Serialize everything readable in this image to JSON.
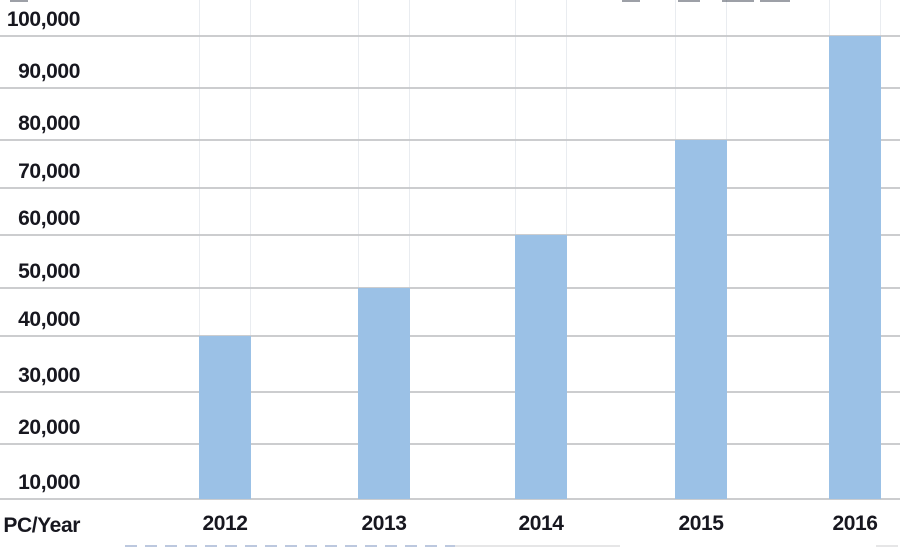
{
  "chart_data": {
    "type": "bar",
    "categories": [
      "2012",
      "2013",
      "2014",
      "2015",
      "2016"
    ],
    "values": [
      40000,
      50000,
      60000,
      80000,
      100000
    ],
    "origin_label": "PC/Year",
    "xlabel": "",
    "ylabel": "",
    "ylim": [
      10000,
      100000
    ],
    "ytick_interval": 10000,
    "ytick_labels": [
      "10,000",
      "20,000",
      "30,000",
      "40,000",
      "50,000",
      "60,000",
      "70,000",
      "80,000",
      "90,000",
      "100,000"
    ],
    "grid": "horizontal",
    "legend_position": "none",
    "bar_color": "#9BC1E6",
    "gridline_color": "#C6C8CA",
    "text_color": "#17171F",
    "background_color": "#FFFFFF"
  }
}
